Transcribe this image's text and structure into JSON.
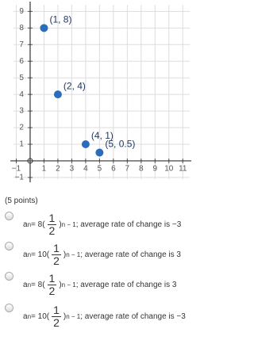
{
  "chart_data": {
    "type": "scatter",
    "x": [
      1,
      2,
      4,
      5
    ],
    "values": [
      8,
      4,
      1,
      0.5
    ],
    "value_labels": [
      "(1, 8)",
      "(2, 4)",
      "(4, 1)",
      "(5, 0.5)"
    ],
    "color": "#2a6ebb",
    "xlim": [
      -1.2,
      11.5
    ],
    "ylim": [
      -1.1,
      9.4
    ],
    "xticks": [
      {
        "value": -1,
        "label": "−1"
      },
      1,
      2,
      3,
      4,
      5,
      6,
      7,
      8,
      9,
      10,
      11
    ],
    "yticks": [
      {
        "value": -1,
        "label": "−1"
      },
      1,
      2,
      3,
      4,
      5,
      6,
      7,
      8,
      9
    ],
    "grid": true
  },
  "question": {
    "points": "(5 points)",
    "options": [
      {
        "lhs": "a",
        "sub": "n",
        "coef": " = 8(",
        "num": "1",
        "den": "2",
        "close": ")",
        "exp": "n − 1",
        "rest": "; average rate of change is −3"
      },
      {
        "lhs": "a",
        "sub": "n",
        "coef": " = 10(",
        "num": "1",
        "den": "2",
        "close": ")",
        "exp": "n − 1",
        "rest": "; average rate of change is 3"
      },
      {
        "lhs": "a",
        "sub": "n",
        "coef": " = 8(",
        "num": "1",
        "den": "2",
        "close": ")",
        "exp": "n − 1",
        "rest": "; average rate of change is 3"
      },
      {
        "lhs": "a",
        "sub": "n",
        "coef": " = 10(",
        "num": "1",
        "den": "2",
        "close": ")",
        "exp": "n − 1",
        "rest": "; average rate of change is −3"
      }
    ]
  }
}
